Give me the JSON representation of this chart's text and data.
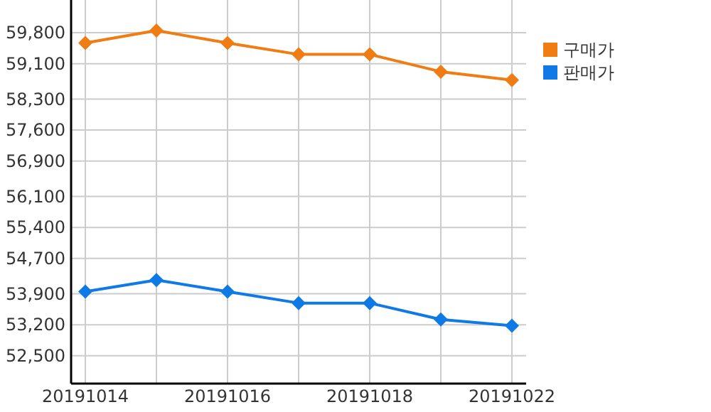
{
  "chart_data": {
    "type": "line",
    "categories": [
      "20191014",
      null,
      "20191016",
      null,
      "20191018",
      null,
      "20191022"
    ],
    "series": [
      {
        "name": "구매가",
        "color": "#f07c14",
        "values": [
          59570,
          59850,
          59570,
          59310,
          59310,
          58920,
          58730
        ]
      },
      {
        "name": "판매가",
        "color": "#0f7ae5",
        "values": [
          53950,
          54210,
          53950,
          53690,
          53690,
          53320,
          53180
        ]
      }
    ],
    "ylim": [
      51870,
      60540
    ],
    "yticks": [
      {
        "value": 52500,
        "label": "52,500"
      },
      {
        "value": 53200,
        "label": "53,200"
      },
      {
        "value": 53900,
        "label": "53,900"
      },
      {
        "value": 54700,
        "label": "54,700"
      },
      {
        "value": 55400,
        "label": "55,400"
      },
      {
        "value": 56100,
        "label": "56,100"
      },
      {
        "value": 56900,
        "label": "56,900"
      },
      {
        "value": 57600,
        "label": "57,600"
      },
      {
        "value": 58300,
        "label": "58,300"
      },
      {
        "value": 59100,
        "label": "59,100"
      },
      {
        "value": 59800,
        "label": "59,800"
      }
    ],
    "grid": true,
    "legend": "right",
    "marker": "diamond",
    "line_style": "solid"
  }
}
